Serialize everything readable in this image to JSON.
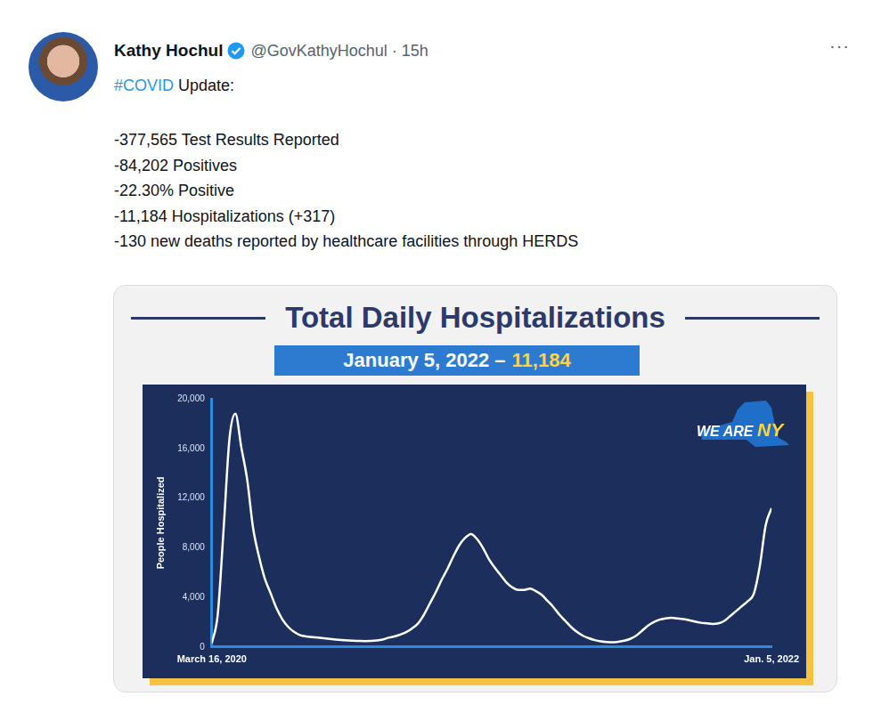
{
  "tweet": {
    "author": "Kathy Hochul",
    "handle_line": "@GovKathyHochul · 15h",
    "menu": "···",
    "hashtag": "#COVID",
    "heading": "Update:",
    "lines": [
      "-377,565 Test Results Reported",
      "-84,202 Positives",
      "-22.30% Positive",
      "-11,184 Hospitalizations (+317)",
      "-130 new deaths reported by healthcare facilities through HERDS"
    ]
  },
  "chart_data": {
    "type": "line",
    "title": "Total Daily Hospitalizations",
    "subtitle": "January 5, 2022 –",
    "subtitle_highlight": "11,184",
    "logo_text": [
      "WE ARE",
      "NY"
    ],
    "y_label": "People Hospitalized",
    "categories": [
      "March 16, 2020",
      null,
      null,
      null,
      null,
      null,
      null,
      null,
      null,
      null,
      null,
      null,
      null,
      null,
      null,
      null,
      null,
      null,
      null,
      null,
      null,
      null,
      null,
      null,
      null,
      null,
      null,
      null,
      null,
      null,
      null,
      null,
      null,
      null,
      null,
      null,
      null,
      null,
      null,
      null,
      null,
      null,
      null,
      null,
      null,
      null,
      null,
      null,
      null,
      null,
      null,
      null,
      null,
      null,
      null,
      null,
      null,
      null,
      null,
      null,
      null,
      null,
      null,
      null,
      null,
      null,
      null,
      null,
      null,
      null,
      null,
      null,
      null,
      null,
      null,
      null,
      null,
      null,
      null,
      null,
      null,
      null,
      null,
      null,
      null,
      null,
      null,
      null,
      null,
      null,
      null,
      null,
      null,
      null,
      null,
      "Jan. 5, 2022"
    ],
    "values": [
      300,
      2600,
      9500,
      16800,
      18800,
      16100,
      13500,
      9600,
      7300,
      5500,
      4300,
      3100,
      2200,
      1600,
      1200,
      950,
      850,
      800,
      750,
      700,
      650,
      600,
      560,
      530,
      500,
      480,
      470,
      480,
      520,
      600,
      750,
      850,
      1000,
      1200,
      1500,
      1900,
      2600,
      3500,
      4400,
      5400,
      6300,
      7300,
      8200,
      8800,
      9100,
      8700,
      8000,
      7100,
      6400,
      5800,
      5200,
      4800,
      4600,
      4600,
      4700,
      4500,
      4200,
      3700,
      3200,
      2600,
      2100,
      1600,
      1200,
      900,
      700,
      550,
      450,
      400,
      380,
      420,
      500,
      650,
      900,
      1300,
      1700,
      2000,
      2200,
      2300,
      2350,
      2300,
      2250,
      2150,
      2050,
      1950,
      1900,
      1850,
      1900,
      2100,
      2500,
      2900,
      3300,
      3700,
      4300,
      6500,
      9800,
      11184
    ],
    "color": "#ffffff",
    "ylim": [
      0,
      20000
    ],
    "yticks": [
      0,
      {
        "value": 4000,
        "label": "4,000"
      },
      {
        "value": 8000,
        "label": "8,000"
      },
      {
        "value": 12000,
        "label": "12,000"
      },
      {
        "value": 16000,
        "label": "16,000"
      },
      {
        "value": 20000,
        "label": "20,000"
      }
    ],
    "grid": false
  }
}
